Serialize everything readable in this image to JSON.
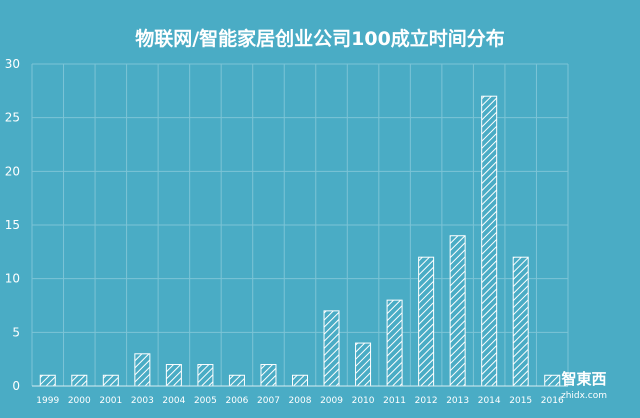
{
  "chart_data": {
    "type": "bar",
    "title": "物联网/智能家居创业公司100成立时间分布",
    "categories": [
      "1999",
      "2000",
      "2001",
      "2003",
      "2004",
      "2005",
      "2006",
      "2007",
      "2008",
      "2009",
      "2010",
      "2011",
      "2012",
      "2013",
      "2014",
      "2015",
      "2016"
    ],
    "values": [
      1,
      1,
      1,
      3,
      2,
      2,
      1,
      2,
      1,
      7,
      4,
      8,
      12,
      14,
      27,
      12,
      1
    ],
    "ylim": [
      0,
      30
    ],
    "yticks": [
      0,
      5,
      10,
      15,
      20,
      25,
      30
    ],
    "grid": true,
    "bar_fill": "diagonal-hatch",
    "colors": {
      "background": "#4AACC5",
      "bars": "#ffffff",
      "text": "#ffffff"
    }
  },
  "watermark": {
    "text": "智東西",
    "subtext": "zhidx.com"
  }
}
